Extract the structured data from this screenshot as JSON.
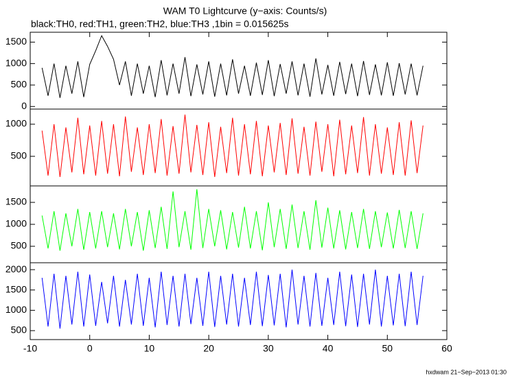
{
  "chart_data": {
    "type": "line",
    "title": "WAM T0 Lightcurve (y−axis: Counts/s)",
    "subtitle": "black:TH0, red:TH1, green:TH2, blue:TH3 ,1bin = 0.015625s",
    "footer": "hxdwam 21−Sep−2013 01:30",
    "xlim": [
      -10,
      60
    ],
    "xticks": [
      -10,
      0,
      10,
      20,
      30,
      40,
      50,
      60
    ],
    "x": [
      -8,
      -7,
      -6,
      -5,
      -4,
      -3,
      -2,
      -1,
      0,
      1,
      2,
      3,
      4,
      5,
      6,
      7,
      8,
      9,
      10,
      11,
      12,
      13,
      14,
      15,
      16,
      17,
      18,
      19,
      20,
      21,
      22,
      23,
      24,
      25,
      26,
      27,
      28,
      29,
      30,
      31,
      32,
      33,
      34,
      35,
      36,
      37,
      38,
      39,
      40,
      41,
      42,
      43,
      44,
      45,
      46,
      47,
      48,
      49,
      50,
      51,
      52,
      53,
      54,
      55,
      56
    ],
    "series": [
      {
        "color": "#000000",
        "ylim": [
          -60,
          1730
        ],
        "yticks": [
          0,
          500,
          1000,
          1500
        ],
        "values": [
          900,
          250,
          1000,
          200,
          950,
          300,
          1050,
          220,
          980,
          1300,
          1650,
          1400,
          1100,
          500,
          1050,
          250,
          1000,
          300,
          950,
          220,
          1080,
          260,
          1000,
          300,
          1150,
          240,
          980,
          280,
          1050,
          230,
          1000,
          260,
          1100,
          300,
          950,
          250,
          1020,
          270,
          1080,
          240,
          990,
          300,
          1050,
          260,
          1000,
          230,
          1120,
          280,
          970,
          250,
          1040,
          290,
          1000,
          240,
          1060,
          270,
          980,
          260,
          1030,
          250,
          1010,
          280,
          1000,
          260,
          950
        ]
      },
      {
        "color": "#ff0000",
        "ylim": [
          40,
          1235
        ],
        "yticks": [
          500,
          1000
        ],
        "values": [
          900,
          200,
          1000,
          180,
          950,
          250,
          1100,
          220,
          980,
          200,
          1050,
          230,
          1000,
          190,
          1120,
          260,
          950,
          210,
          1000,
          240,
          1080,
          200,
          970,
          230,
          1150,
          250,
          990,
          210,
          1030,
          180,
          960,
          240,
          1100,
          200,
          1000,
          220,
          1050,
          190,
          980,
          250,
          1020,
          210,
          1090,
          230,
          960,
          200,
          1040,
          260,
          1000,
          190,
          1070,
          220,
          980,
          240,
          1110,
          200,
          1000,
          230,
          950,
          210,
          1030,
          200,
          1060,
          240,
          980
        ]
      },
      {
        "color": "#00ff00",
        "ylim": [
          125,
          1875
        ],
        "yticks": [
          500,
          1000,
          1500
        ],
        "values": [
          1200,
          450,
          1300,
          400,
          1250,
          500,
          1350,
          420,
          1280,
          450,
          1300,
          480,
          1250,
          430,
          1350,
          500,
          1280,
          400,
          1320,
          460,
          1400,
          440,
          1750,
          480,
          1300,
          420,
          1800,
          460,
          1350,
          500,
          1320,
          430,
          1280,
          470,
          1400,
          450,
          1300,
          410,
          1500,
          480,
          1350,
          440,
          1450,
          460,
          1300,
          420,
          1550,
          470,
          1380,
          450,
          1320,
          430,
          1280,
          460,
          1350,
          440,
          1300,
          480,
          1270,
          450,
          1330,
          460,
          1300,
          440,
          1250
        ]
      },
      {
        "color": "#0000ff",
        "ylim": [
          280,
          2170
        ],
        "yticks": [
          500,
          1000,
          1500,
          2000
        ],
        "values": [
          1800,
          600,
          1900,
          550,
          1850,
          650,
          1950,
          600,
          1880,
          620,
          1700,
          680,
          1850,
          600,
          1750,
          650,
          1900,
          620,
          1800,
          580,
          1950,
          640,
          1850,
          600,
          1900,
          660,
          1800,
          620,
          1950,
          590,
          1850,
          650,
          1900,
          600,
          1800,
          640,
          1950,
          610,
          1870,
          630,
          1900,
          580,
          2000,
          650,
          1850,
          600,
          1920,
          620,
          1800,
          640,
          1950,
          610,
          1880,
          590,
          1900,
          650,
          2000,
          600,
          1850,
          630,
          1900,
          610,
          1950,
          640,
          1850
        ]
      }
    ]
  }
}
